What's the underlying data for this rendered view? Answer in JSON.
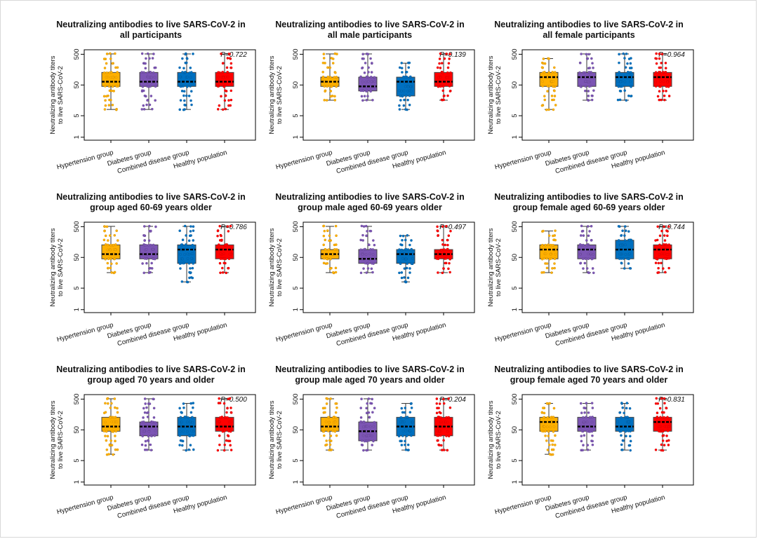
{
  "colors": {
    "Hypertension group": "#FFB000",
    "Diabetes group": "#7C55B4",
    "Combined disease group": "#0070C0",
    "Healthy population": "#FF0000"
  },
  "chart_data": [
    {
      "type": "box",
      "title_line1": "Neutralizing antibodies to live SARS-CoV-2 in",
      "title_line2": "all participants",
      "ylabel_line1": "Neutralizing antibody titers",
      "ylabel_line2": "to live SARS-CoV-2",
      "y_scale": "log",
      "ylim": [
        1,
        500
      ],
      "y_ticks": [
        "1",
        "5",
        "50",
        "500"
      ],
      "categories": [
        "Hypertension group",
        "Diabetes group",
        "Combined disease group",
        "Healthy population"
      ],
      "p_value": "P=0.722",
      "boxes": [
        {
          "min": 8,
          "q1": 45,
          "median": 64,
          "q3": 128,
          "max": 512
        },
        {
          "min": 8,
          "q1": 45,
          "median": 64,
          "q3": 128,
          "max": 512
        },
        {
          "min": 8,
          "q1": 45,
          "median": 64,
          "q3": 128,
          "max": 512
        },
        {
          "min": 8,
          "q1": 45,
          "median": 64,
          "q3": 128,
          "max": 512
        }
      ]
    },
    {
      "type": "box",
      "title_line1": "Neutralizing antibodies to live SARS-CoV-2 in",
      "title_line2": "all male participants",
      "ylabel_line1": "Neutralizing antibody titers",
      "ylabel_line2": "to live SARS-CoV-2",
      "y_scale": "log",
      "ylim": [
        1,
        500
      ],
      "y_ticks": [
        "1",
        "5",
        "50",
        "500"
      ],
      "categories": [
        "Hypertension group",
        "Diabetes group",
        "Combined disease group",
        "Healthy population"
      ],
      "p_value": "P=0.139",
      "boxes": [
        {
          "min": 16,
          "q1": 45,
          "median": 64,
          "q3": 90,
          "max": 512
        },
        {
          "min": 16,
          "q1": 32,
          "median": 45,
          "q3": 90,
          "max": 512
        },
        {
          "min": 8,
          "q1": 22,
          "median": 64,
          "q3": 90,
          "max": 256
        },
        {
          "min": 16,
          "q1": 45,
          "median": 64,
          "q3": 128,
          "max": 512
        }
      ]
    },
    {
      "type": "box",
      "title_line1": "Neutralizing antibodies to live SARS-CoV-2 in",
      "title_line2": "all female participants",
      "ylabel_line1": "Neutralizing antibody titers",
      "ylabel_line2": "to live SARS-CoV-2",
      "y_scale": "log",
      "ylim": [
        1,
        500
      ],
      "y_ticks": [
        "1",
        "5",
        "50",
        "500"
      ],
      "categories": [
        "Hypertension group",
        "Diabetes group",
        "Combined disease group",
        "Healthy population"
      ],
      "p_value": "P=0.964",
      "boxes": [
        {
          "min": 8,
          "q1": 45,
          "median": 90,
          "q3": 128,
          "max": 362
        },
        {
          "min": 16,
          "q1": 45,
          "median": 90,
          "q3": 128,
          "max": 512
        },
        {
          "min": 16,
          "q1": 45,
          "median": 90,
          "q3": 128,
          "max": 512
        },
        {
          "min": 16,
          "q1": 45,
          "median": 90,
          "q3": 128,
          "max": 512
        }
      ]
    },
    {
      "type": "box",
      "title_line1": "Neutralizing antibodies to live SARS-CoV-2 in",
      "title_line2": "group aged 60-69 years older",
      "ylabel_line1": "Neutralizing antibody titers",
      "ylabel_line2": "to live SARS-CoV-2",
      "y_scale": "log",
      "ylim": [
        1,
        500
      ],
      "y_ticks": [
        "1",
        "5",
        "50",
        "500"
      ],
      "categories": [
        "Hypertension group",
        "Diabetes group",
        "Combined disease group",
        "Healthy population"
      ],
      "p_value": "P=0.786",
      "boxes": [
        {
          "min": 16,
          "q1": 45,
          "median": 64,
          "q3": 128,
          "max": 512
        },
        {
          "min": 16,
          "q1": 45,
          "median": 64,
          "q3": 128,
          "max": 512
        },
        {
          "min": 8,
          "q1": 32,
          "median": 90,
          "q3": 128,
          "max": 512
        },
        {
          "min": 16,
          "q1": 45,
          "median": 90,
          "q3": 128,
          "max": 512
        }
      ]
    },
    {
      "type": "box",
      "title_line1": "Neutralizing antibodies to live SARS-CoV-2 in",
      "title_line2": "group male aged 60-69 years older",
      "ylabel_line1": "Neutralizing antibody titers",
      "ylabel_line2": "to live SARS-CoV-2",
      "y_scale": "log",
      "ylim": [
        1,
        500
      ],
      "y_ticks": [
        "1",
        "5",
        "50",
        "500"
      ],
      "categories": [
        "Hypertension group",
        "Diabetes group",
        "Combined disease group",
        "Healthy population"
      ],
      "p_value": "P=0.497",
      "boxes": [
        {
          "min": 16,
          "q1": 45,
          "median": 64,
          "q3": 90,
          "max": 512
        },
        {
          "min": 16,
          "q1": 32,
          "median": 45,
          "q3": 90,
          "max": 512
        },
        {
          "min": 8,
          "q1": 32,
          "median": 64,
          "q3": 90,
          "max": 256
        },
        {
          "min": 16,
          "q1": 45,
          "median": 64,
          "q3": 90,
          "max": 512
        }
      ]
    },
    {
      "type": "box",
      "title_line1": "Neutralizing antibodies to live SARS-CoV-2 in",
      "title_line2": "group female aged 60-69 years older",
      "ylabel_line1": "Neutralizing antibody titers",
      "ylabel_line2": "to live SARS-CoV-2",
      "y_scale": "log",
      "ylim": [
        1,
        500
      ],
      "y_ticks": [
        "1",
        "5",
        "50",
        "500"
      ],
      "categories": [
        "Hypertension group",
        "Diabetes group",
        "Combined disease group",
        "Healthy population"
      ],
      "p_value": "P=0.744",
      "boxes": [
        {
          "min": 16,
          "q1": 45,
          "median": 90,
          "q3": 128,
          "max": 362
        },
        {
          "min": 16,
          "q1": 45,
          "median": 90,
          "q3": 128,
          "max": 512
        },
        {
          "min": 22,
          "q1": 45,
          "median": 90,
          "q3": 181,
          "max": 512
        },
        {
          "min": 16,
          "q1": 45,
          "median": 90,
          "q3": 128,
          "max": 512
        }
      ]
    },
    {
      "type": "box",
      "title_line1": "Neutralizing antibodies to live SARS-CoV-2 in",
      "title_line2": "group aged 70 years and older",
      "ylabel_line1": "Neutralizing antibody titers",
      "ylabel_line2": "to live SARS-CoV-2",
      "y_scale": "log",
      "ylim": [
        1,
        500
      ],
      "y_ticks": [
        "1",
        "5",
        "50",
        "500"
      ],
      "categories": [
        "Hypertension group",
        "Diabetes group",
        "Combined disease group",
        "Healthy population"
      ],
      "p_value": "P=0.500",
      "boxes": [
        {
          "min": 8,
          "q1": 45,
          "median": 64,
          "q3": 128,
          "max": 512
        },
        {
          "min": 11,
          "q1": 32,
          "median": 64,
          "q3": 90,
          "max": 512
        },
        {
          "min": 11,
          "q1": 32,
          "median": 64,
          "q3": 128,
          "max": 362
        },
        {
          "min": 11,
          "q1": 45,
          "median": 64,
          "q3": 128,
          "max": 512
        }
      ]
    },
    {
      "type": "box",
      "title_line1": "Neutralizing antibodies to live SARS-CoV-2 in",
      "title_line2": "group male aged 70 years and older",
      "ylabel_line1": "Neutralizing antibody titers",
      "ylabel_line2": "to live SARS-CoV-2",
      "y_scale": "log",
      "ylim": [
        1,
        500
      ],
      "y_ticks": [
        "1",
        "5",
        "50",
        "500"
      ],
      "categories": [
        "Hypertension group",
        "Diabetes group",
        "Combined disease group",
        "Healthy population"
      ],
      "p_value": "P=0.204",
      "boxes": [
        {
          "min": 11,
          "q1": 45,
          "median": 64,
          "q3": 128,
          "max": 512
        },
        {
          "min": 11,
          "q1": 22,
          "median": 45,
          "q3": 90,
          "max": 512
        },
        {
          "min": 11,
          "q1": 32,
          "median": 64,
          "q3": 128,
          "max": 362
        },
        {
          "min": 11,
          "q1": 32,
          "median": 64,
          "q3": 128,
          "max": 512
        }
      ]
    },
    {
      "type": "box",
      "title_line1": "Neutralizing antibodies to live SARS-CoV-2 in",
      "title_line2": "group female aged 70 years and older",
      "ylabel_line1": "Neutralizing antibody titers",
      "ylabel_line2": "to live SARS-CoV-2",
      "y_scale": "log",
      "ylim": [
        1,
        500
      ],
      "y_ticks": [
        "1",
        "5",
        "50",
        "500"
      ],
      "categories": [
        "Hypertension group",
        "Diabetes group",
        "Combined disease group",
        "Healthy population"
      ],
      "p_value": "P=0.831",
      "boxes": [
        {
          "min": 8,
          "q1": 45,
          "median": 90,
          "q3": 128,
          "max": 362
        },
        {
          "min": 11,
          "q1": 45,
          "median": 64,
          "q3": 128,
          "max": 362
        },
        {
          "min": 11,
          "q1": 45,
          "median": 64,
          "q3": 128,
          "max": 362
        },
        {
          "min": 11,
          "q1": 45,
          "median": 90,
          "q3": 128,
          "max": 512
        }
      ]
    }
  ]
}
